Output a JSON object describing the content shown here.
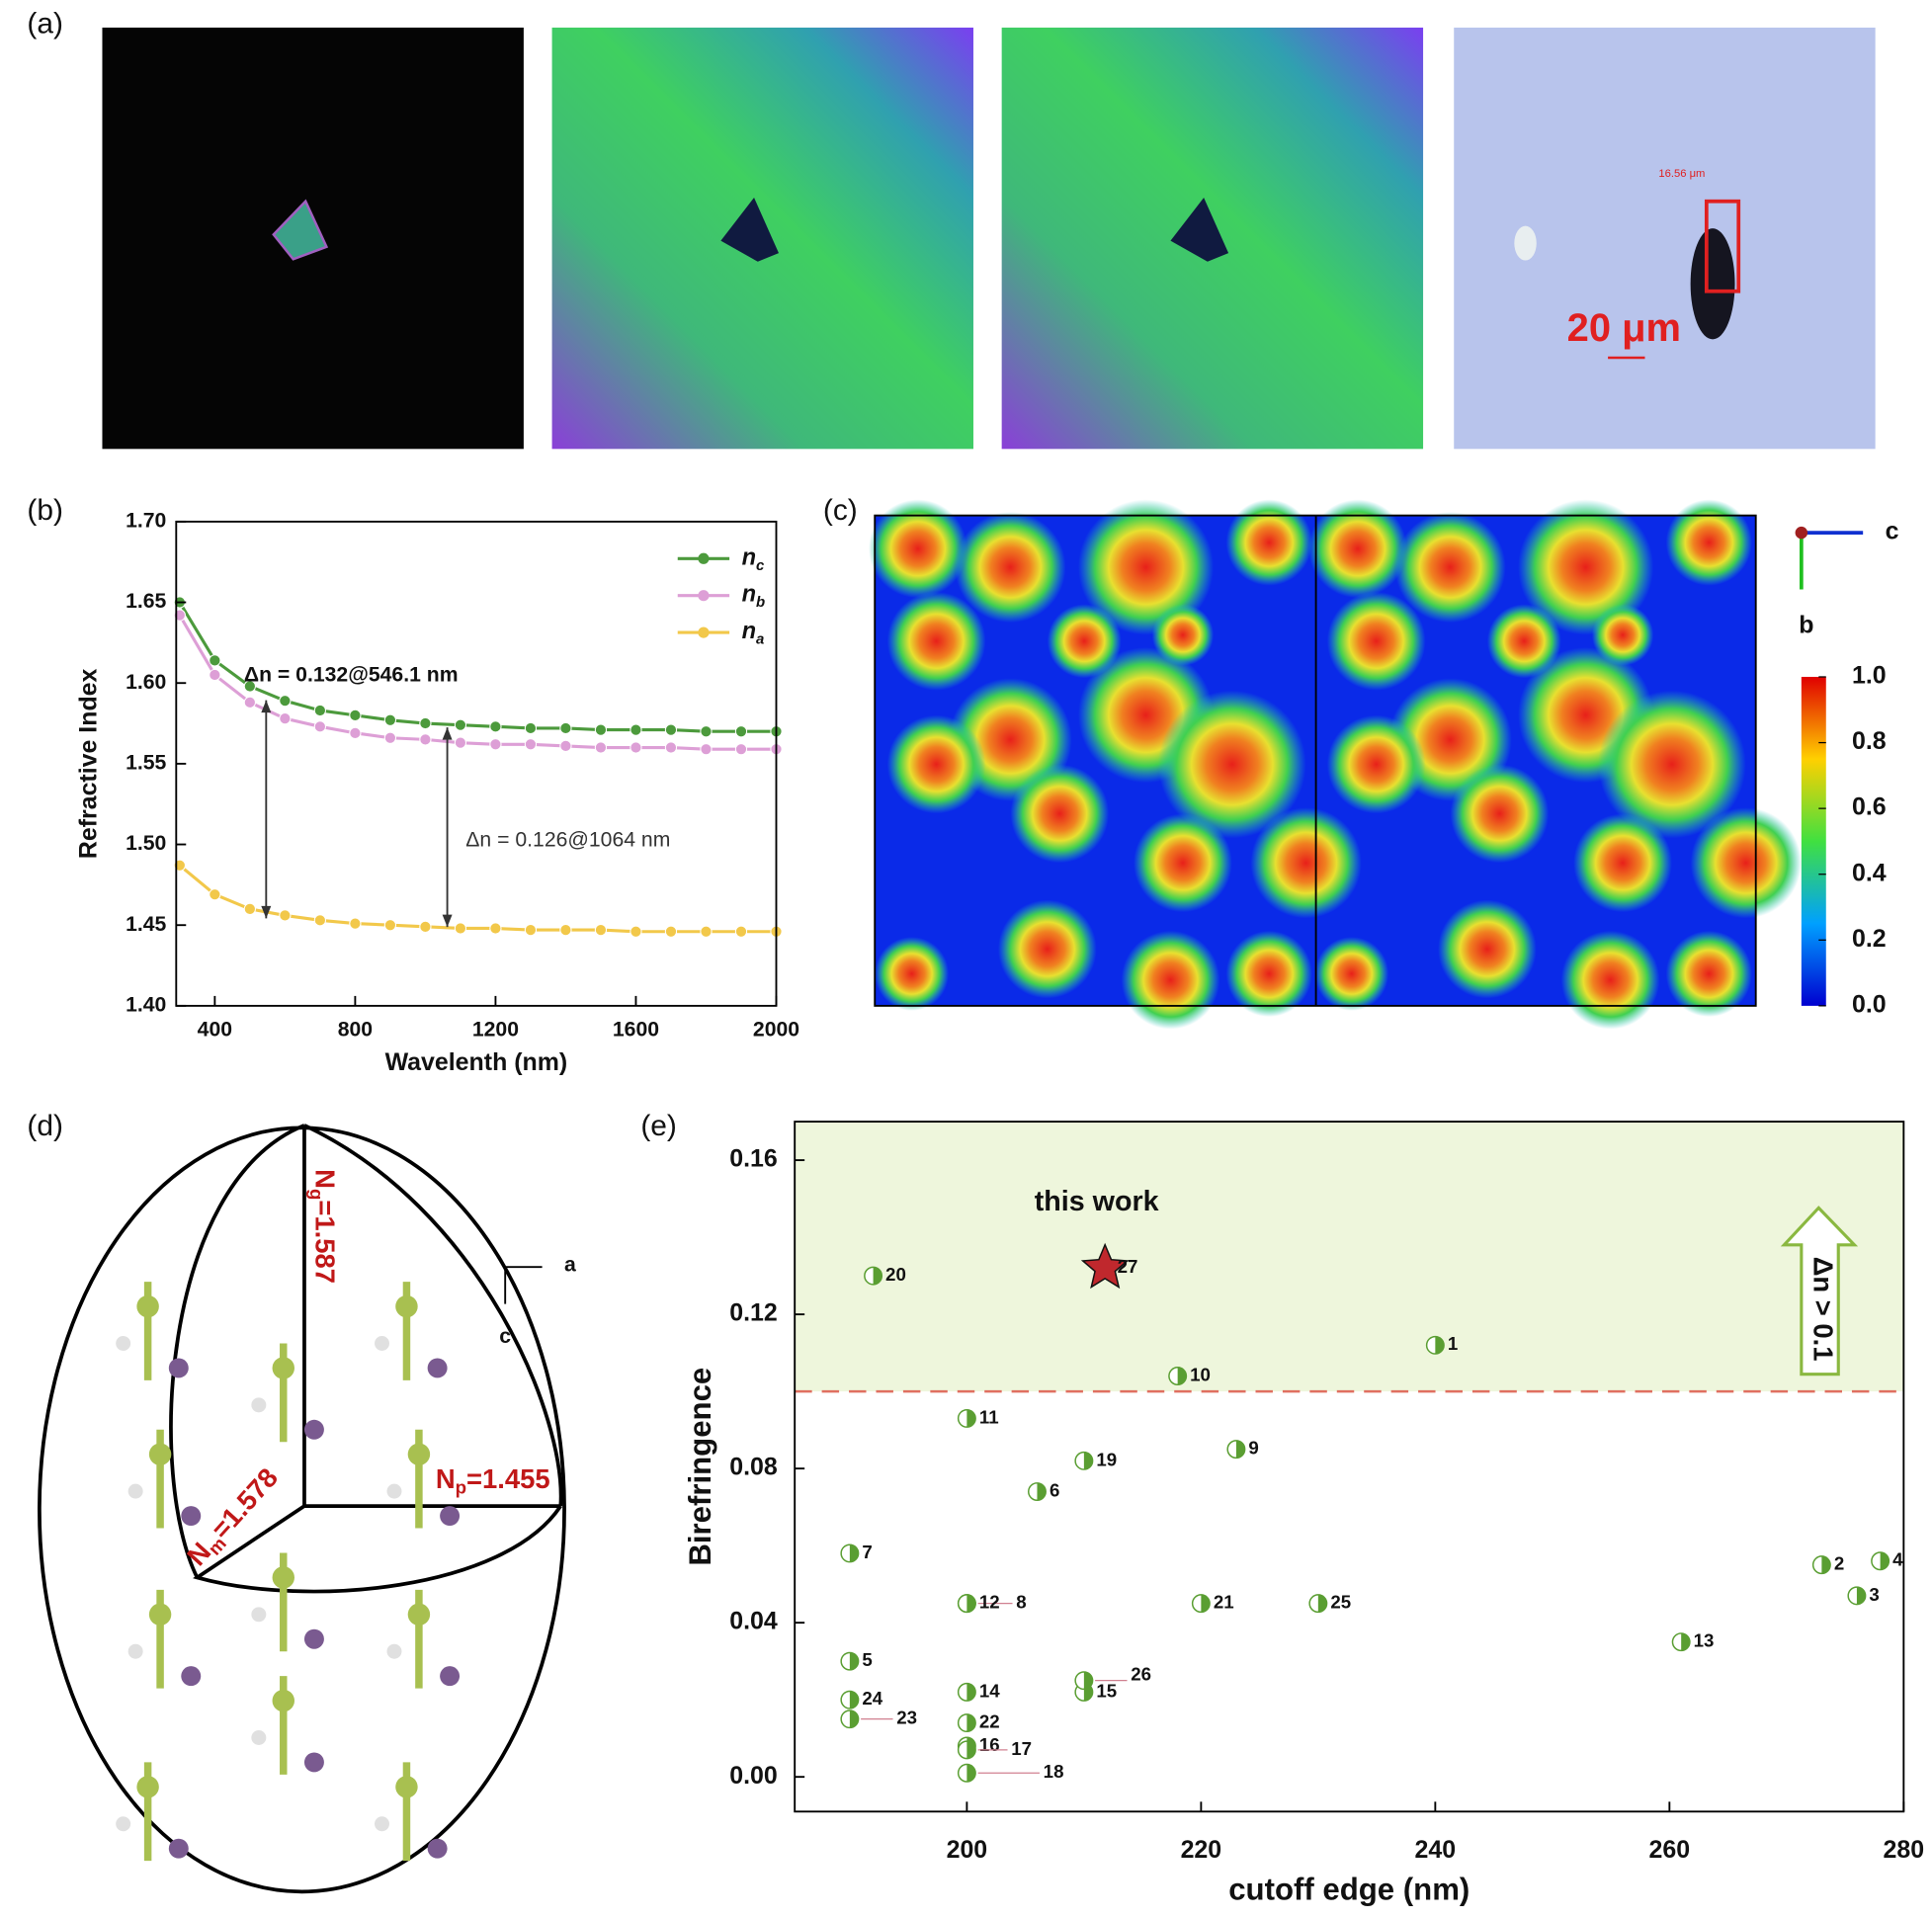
{
  "panel_labels": [
    "(a)",
    "(b)",
    "(c)",
    "(d)",
    "(e)"
  ],
  "panel_a": {
    "measure_label": "16.56 μm",
    "scale_bar_label": "20 μm"
  },
  "panel_c": {
    "axis_labels": [
      "c",
      "b"
    ],
    "colorbar_ticks": [
      {
        "value": 1,
        "label": "1.0"
      },
      0.8,
      0.6,
      0.4,
      0.2,
      {
        "value": 0,
        "label": "0.0"
      }
    ]
  },
  "panel_d": {
    "axis_labels": [
      "a",
      "c"
    ],
    "index_labels": [
      {
        "symbol": "N",
        "subscript": "g",
        "text": "=1.587"
      },
      {
        "symbol": "N",
        "subscript": "m",
        "text": "=1.578"
      },
      {
        "symbol": "N",
        "subscript": "p",
        "text": "=1.455"
      }
    ]
  },
  "chart_data": [
    {
      "type": "line",
      "x_label": "Wavelenth (nm)",
      "y_label": "Refractive Index",
      "x": [
        300,
        400,
        500,
        600,
        700,
        800,
        900,
        1000,
        1100,
        1200,
        1300,
        1400,
        1500,
        1600,
        1700,
        1800,
        1900,
        2000
      ],
      "series": [
        {
          "name": "n",
          "subscript": "c",
          "color": "#4c9a3c",
          "values": [
            1.65,
            1.614,
            1.598,
            1.589,
            1.583,
            1.58,
            1.577,
            1.575,
            1.574,
            1.573,
            1.572,
            1.572,
            1.571,
            1.571,
            1.571,
            1.57,
            1.57,
            1.57
          ]
        },
        {
          "name": "n",
          "subscript": "b",
          "color": "#dd9fd6",
          "values": [
            1.642,
            1.605,
            1.588,
            1.578,
            1.573,
            1.569,
            1.566,
            1.565,
            1.563,
            1.562,
            1.562,
            1.561,
            1.56,
            1.56,
            1.56,
            1.559,
            1.559,
            1.559
          ]
        },
        {
          "name": "n",
          "subscript": "a",
          "color": "#f2c84a",
          "values": [
            1.487,
            1.469,
            1.46,
            1.456,
            1.453,
            1.451,
            1.45,
            1.449,
            1.448,
            1.448,
            1.447,
            1.447,
            1.447,
            1.446,
            1.446,
            1.446,
            1.446,
            1.446
          ]
        }
      ],
      "annotations": [
        "Δn = 0.132@546.1 nm",
        "Δn = 0.126@1064 nm"
      ],
      "xlim": [
        290,
        2000
      ],
      "xticks": [
        400,
        800,
        1200,
        1600,
        2000
      ],
      "ylim": [
        1.4,
        1.7
      ],
      "yticks": [
        {
          "value": 1.4,
          "label": "1.40"
        },
        1.45,
        {
          "value": 1.5,
          "label": "1.50"
        },
        1.55,
        {
          "value": 1.6,
          "label": "1.60"
        },
        1.65,
        {
          "value": 1.7,
          "label": "1.70"
        }
      ],
      "legend": "upper right"
    },
    {
      "type": "scatter",
      "x_label": "cutoff edge (nm)",
      "y_label": "Birefringence",
      "series": [
        {
          "marker": "half-circle",
          "color": "#5a9e32",
          "x": [
            240,
            273,
            276,
            278,
            190,
            206,
            190,
            200,
            223,
            218,
            200,
            200,
            261,
            200,
            210,
            200,
            200,
            200,
            210,
            192,
            220,
            200,
            190,
            190,
            230,
            210
          ],
          "values": [
            0.112,
            0.055,
            0.047,
            0.056,
            0.03,
            0.074,
            0.058,
            0.045,
            0.085,
            0.104,
            0.093,
            0.045,
            0.035,
            0.022,
            0.022,
            0.008,
            0.007,
            0.001,
            0.082,
            0.13,
            0.045,
            0.014,
            0.015,
            0.02,
            0.045,
            0.025
          ],
          "labels": [
            "1",
            "2",
            "3",
            "4",
            "5",
            "6",
            "7",
            "8",
            "9",
            "10",
            "11",
            "12",
            "13",
            "14",
            "15",
            "16",
            "17",
            "18",
            "19",
            "20",
            "21",
            "22",
            "23",
            "24",
            "25",
            "26"
          ]
        },
        {
          "marker": "star",
          "color": "#c0282d",
          "x": [
            211.8
          ],
          "values": [
            0.132
          ],
          "labels": [
            "27"
          ]
        }
      ],
      "annotations": [
        "this work",
        "Δn > 0.1"
      ],
      "threshold": 0.1,
      "xlim": [
        185.3,
        280
      ],
      "xticks": [
        200,
        220,
        240,
        260,
        280
      ],
      "ylim": [
        -0.009,
        0.17
      ],
      "yticks": [
        {
          "value": 0,
          "label": "0.00"
        },
        0.04,
        0.08,
        0.12,
        0.16
      ]
    }
  ]
}
